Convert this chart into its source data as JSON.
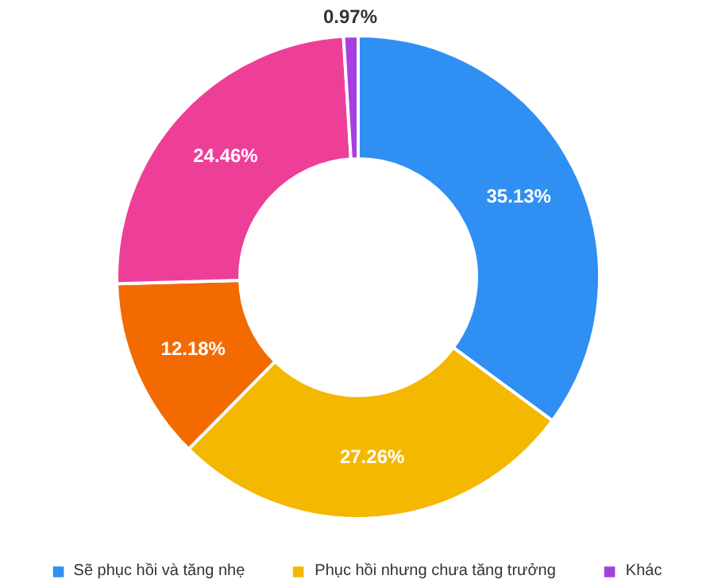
{
  "chart_data": {
    "type": "donut",
    "categories": [
      "Sẽ phục hồi và tăng nhẹ",
      "Phục hồi nhưng chưa tăng trưởng",
      null,
      null,
      "Khác"
    ],
    "values": [
      35.13,
      27.26,
      12.18,
      24.46,
      0.97
    ],
    "value_labels": [
      "35.13%",
      "27.26%",
      "12.18%",
      "24.46%",
      "0.97%"
    ],
    "colors": [
      "#2f8ff2",
      "#f4b800",
      "#f26a00",
      "#ee3f98",
      "#a63fe0"
    ],
    "legend": "bottom"
  }
}
